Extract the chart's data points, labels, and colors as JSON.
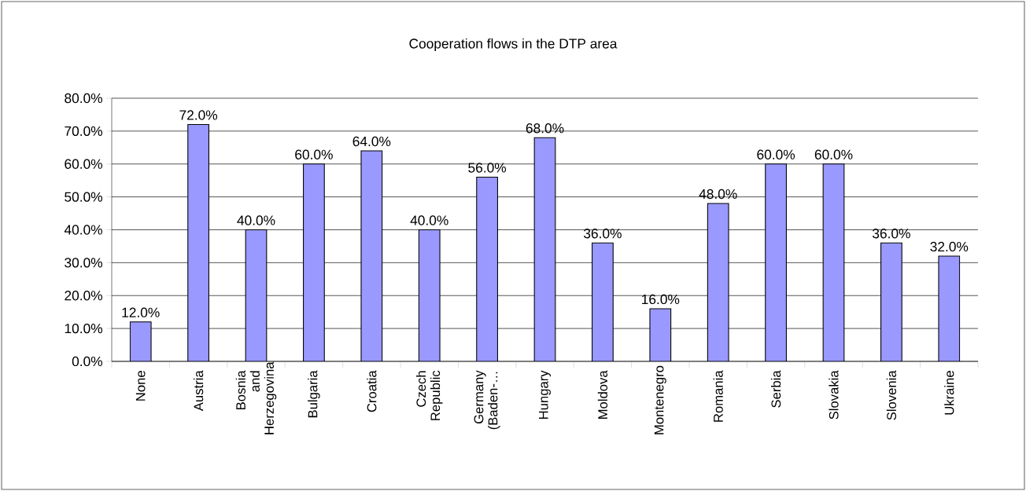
{
  "chart_data": {
    "type": "bar",
    "title": "Cooperation flows in the DTP area",
    "categories": [
      "None",
      "Austria",
      "Bosnia and Herzegovina",
      "Bulgaria",
      "Croatia",
      "Czech Republic",
      "Germany (Baden-…",
      "Hungary",
      "Moldova",
      "Montenegro",
      "Romania",
      "Serbia",
      "Slovakia",
      "Slovenia",
      "Ukraine"
    ],
    "values": [
      12,
      72,
      40,
      60,
      64,
      40,
      56,
      68,
      36,
      16,
      48,
      60,
      60,
      36,
      32
    ],
    "value_labels": [
      "12.0%",
      "72.0%",
      "40.0%",
      "60.0%",
      "64.0%",
      "40.0%",
      "56.0%",
      "68.0%",
      "36.0%",
      "16.0%",
      "48.0%",
      "60.0%",
      "60.0%",
      "36.0%",
      "32.0%"
    ],
    "color": "#9999ff",
    "ylim": [
      0,
      80
    ],
    "yticks": [
      {
        "value": 0,
        "label": "0.0%"
      },
      {
        "value": 10,
        "label": "10.0%"
      },
      {
        "value": 20,
        "label": "20.0%"
      },
      {
        "value": 30,
        "label": "30.0%"
      },
      {
        "value": 40,
        "label": "40.0%"
      },
      {
        "value": 50,
        "label": "50.0%"
      },
      {
        "value": 60,
        "label": "60.0%"
      },
      {
        "value": 70,
        "label": "70.0%"
      },
      {
        "value": 80,
        "label": "80.0%"
      }
    ],
    "grid": "y"
  }
}
